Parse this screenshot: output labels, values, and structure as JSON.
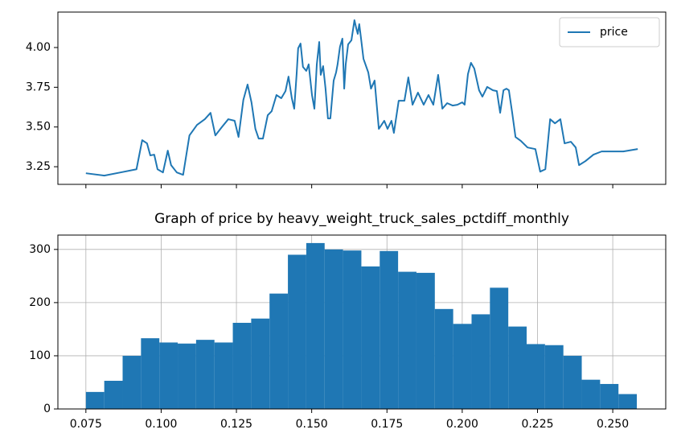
{
  "chart_data": [
    {
      "type": "line",
      "x": [
        0.075,
        0.0811,
        0.0865,
        0.0918,
        0.0937,
        0.0953,
        0.0964,
        0.0977,
        0.0988,
        0.1006,
        0.1022,
        0.1033,
        0.1052,
        0.1073,
        0.1094,
        0.1119,
        0.1145,
        0.1164,
        0.118,
        0.1201,
        0.1223,
        0.1244,
        0.1257,
        0.1273,
        0.1287,
        0.13,
        0.1313,
        0.1324,
        0.1338,
        0.1354,
        0.1367,
        0.1383,
        0.1399,
        0.1413,
        0.1423,
        0.1434,
        0.1442,
        0.145,
        0.1455,
        0.1463,
        0.1471,
        0.1482,
        0.149,
        0.1501,
        0.1509,
        0.1517,
        0.1525,
        0.153,
        0.1538,
        0.1546,
        0.1554,
        0.1562,
        0.1573,
        0.1581,
        0.1586,
        0.1594,
        0.1602,
        0.1608,
        0.1613,
        0.1621,
        0.1632,
        0.1642,
        0.1648,
        0.1653,
        0.1658,
        0.1663,
        0.1672,
        0.1688,
        0.1697,
        0.1709,
        0.1723,
        0.1741,
        0.1752,
        0.1765,
        0.1773,
        0.1789,
        0.1808,
        0.1821,
        0.1835,
        0.1853,
        0.1872,
        0.1888,
        0.1904,
        0.192,
        0.1934,
        0.195,
        0.1968,
        0.1984,
        0.2,
        0.2008,
        0.2019,
        0.2029,
        0.204,
        0.2056,
        0.2067,
        0.2083,
        0.2102,
        0.2115,
        0.2126,
        0.2137,
        0.2147,
        0.2155,
        0.2166,
        0.2177,
        0.2195,
        0.2217,
        0.2243,
        0.2259,
        0.2276,
        0.2292,
        0.2308,
        0.2326,
        0.234,
        0.2361,
        0.2377,
        0.2388,
        0.2409,
        0.2436,
        0.2463,
        0.2495,
        0.2535,
        0.2583
      ],
      "series": [
        {
          "name": "price",
          "color": "#1f77b4",
          "values": [
            3.209,
            3.194,
            3.214,
            3.234,
            3.417,
            3.397,
            3.321,
            3.326,
            3.234,
            3.214,
            3.351,
            3.26,
            3.214,
            3.199,
            3.447,
            3.513,
            3.549,
            3.589,
            3.447,
            3.498,
            3.549,
            3.539,
            3.437,
            3.67,
            3.767,
            3.655,
            3.488,
            3.427,
            3.427,
            3.574,
            3.599,
            3.701,
            3.681,
            3.726,
            3.817,
            3.681,
            3.615,
            3.833,
            3.995,
            4.025,
            3.878,
            3.853,
            3.894,
            3.701,
            3.615,
            3.894,
            4.035,
            3.828,
            3.883,
            3.741,
            3.554,
            3.554,
            3.792,
            3.843,
            3.894,
            4.005,
            4.056,
            3.741,
            3.894,
            4.02,
            4.046,
            4.172,
            4.122,
            4.086,
            4.147,
            4.071,
            3.929,
            3.843,
            3.741,
            3.792,
            3.488,
            3.539,
            3.488,
            3.539,
            3.463,
            3.665,
            3.665,
            3.812,
            3.64,
            3.716,
            3.64,
            3.701,
            3.64,
            3.828,
            3.615,
            3.65,
            3.635,
            3.64,
            3.655,
            3.64,
            3.833,
            3.904,
            3.868,
            3.731,
            3.691,
            3.752,
            3.731,
            3.726,
            3.589,
            3.731,
            3.741,
            3.731,
            3.589,
            3.437,
            3.412,
            3.371,
            3.361,
            3.219,
            3.234,
            3.549,
            3.523,
            3.549,
            3.397,
            3.407,
            3.371,
            3.26,
            3.285,
            3.326,
            3.346,
            3.346,
            3.346,
            3.361
          ]
        }
      ],
      "xlim": [
        0.0657,
        0.2676
      ],
      "xticks": [
        0.075,
        0.1,
        0.125,
        0.15,
        0.175,
        0.2,
        0.225,
        0.25
      ],
      "ylim": [
        3.139,
        4.223
      ],
      "yticks": [
        {
          "value": 3.25,
          "label": "3.25"
        },
        {
          "value": 3.5,
          "label": "3.50"
        },
        {
          "value": 3.75,
          "label": "3.75"
        },
        {
          "value": 4,
          "label": "4.00"
        }
      ],
      "legend": "upper right",
      "grid": false
    },
    {
      "type": "histogram",
      "title": "Graph of price by heavy_weight_truck_sales_pctdiff_monthly",
      "bins": [
        0.075,
        0.0811,
        0.0872,
        0.0933,
        0.0994,
        0.1055,
        0.1116,
        0.1177,
        0.1238,
        0.1299,
        0.136,
        0.1421,
        0.1482,
        0.1543,
        0.1604,
        0.1665,
        0.1726,
        0.1787,
        0.1848,
        0.1909,
        0.197,
        0.2031,
        0.2092,
        0.2153,
        0.2214,
        0.2275,
        0.2336,
        0.2397,
        0.2458,
        0.2519,
        0.258
      ],
      "values": [
        32,
        53,
        100,
        133,
        125,
        123,
        130,
        125,
        162,
        170,
        217,
        290,
        312,
        300,
        298,
        268,
        297,
        258,
        256,
        188,
        160,
        178,
        228,
        155,
        122,
        120,
        100,
        55,
        47,
        28
      ],
      "color": "#1f77b4",
      "xlim": [
        0.0657,
        0.2676
      ],
      "xticks": [
        0.075,
        {
          "value": 0.1,
          "label": "0.100"
        },
        0.125,
        {
          "value": 0.15,
          "label": "0.150"
        },
        0.175,
        {
          "value": 0.2,
          "label": "0.200"
        },
        0.225,
        {
          "value": 0.25,
          "label": "0.250"
        }
      ],
      "ylim": [
        0,
        327
      ],
      "yticks": [
        0,
        100,
        200,
        300
      ],
      "grid": true
    }
  ]
}
